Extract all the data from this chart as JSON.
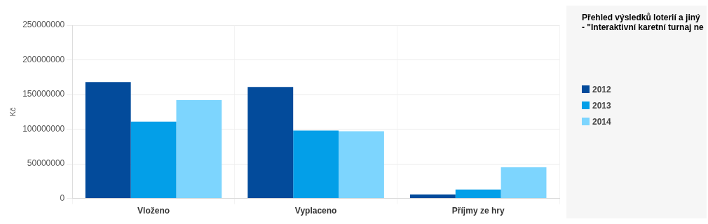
{
  "chart_data": {
    "type": "bar",
    "title": "Přehled výsledků loterií a jiný",
    "subtitle": "- \"Interaktivní karetní turnaj ne",
    "ylabel": "Kč",
    "categories": [
      "Vloženo",
      "Vyplaceno",
      "Příjmy ze hry"
    ],
    "series": [
      {
        "name": "2012",
        "color": "#034b9b",
        "values": [
          168000000,
          161000000,
          6000000
        ]
      },
      {
        "name": "2013",
        "color": "#039fe8",
        "values": [
          111000000,
          98000000,
          13000000
        ]
      },
      {
        "name": "2014",
        "color": "#7dd5fe",
        "values": [
          142000000,
          97000000,
          45000000
        ]
      }
    ],
    "ylim": [
      0,
      250000000
    ],
    "yticks": [
      0,
      50000000,
      100000000,
      150000000,
      200000000,
      250000000
    ],
    "grid": true,
    "legend": "right"
  }
}
